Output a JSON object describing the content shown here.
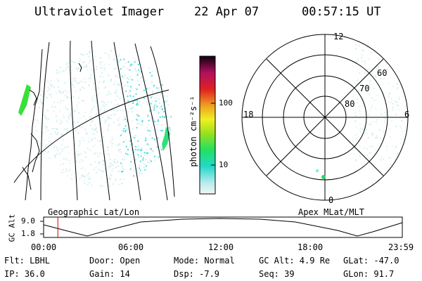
{
  "header": {
    "instrument": "Ultraviolet Imager",
    "date": "22 Apr 07",
    "time": "00:57:15 UT"
  },
  "colorbar": {
    "unit_label": "photon cm⁻²s⁻¹",
    "ticks": [
      "100",
      "10"
    ]
  },
  "polar_plot": {
    "mlt_labels": {
      "top": "12",
      "left": "18",
      "right": "6",
      "bottom": "0"
    },
    "lat_labels": [
      "60",
      "70",
      "80"
    ],
    "title": "Apex MLat/MLT"
  },
  "geo_plot": {
    "title": "Geographic Lat/Lon"
  },
  "orbit_plot": {
    "ylabel": "GC Alt",
    "y_ticks": [
      "9.0",
      "1.8"
    ],
    "x_ticks": [
      "00:00",
      "06:00",
      "12:00",
      "18:00",
      "23:59"
    ],
    "marker_time_hours": 0.954
  },
  "info": {
    "filter": "Flt: LBHL",
    "door": "Door: Open",
    "mode": "Mode: Normal",
    "gc_alt": "GC Alt: 4.9 Re",
    "glat": "GLat: -47.0",
    "ip": "IP: 36.0",
    "gain": "Gain: 14",
    "dsp": "Dsp:   -7.9",
    "seq": "Seq: 39",
    "glon": "GLon:  91.7"
  }
}
